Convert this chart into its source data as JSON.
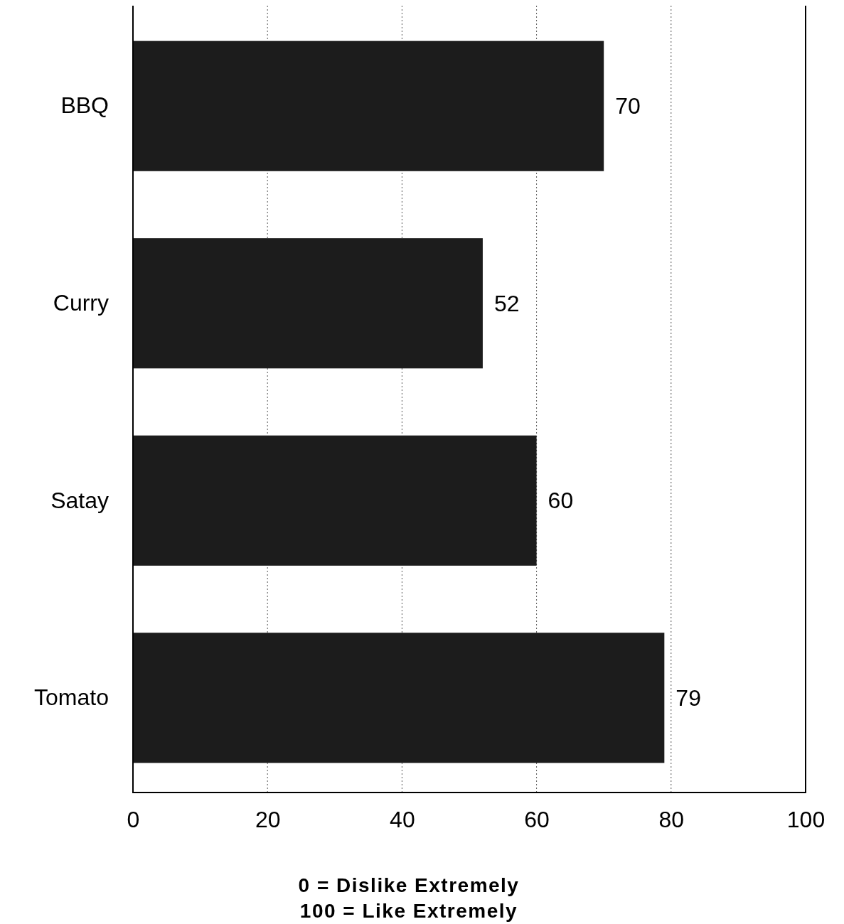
{
  "chart_data": {
    "type": "bar",
    "orientation": "horizontal",
    "categories": [
      "BBQ",
      "Curry",
      "Satay",
      "Tomato"
    ],
    "values": [
      70,
      52,
      60,
      79
    ],
    "color": "#1c1c1c",
    "xlim": [
      0,
      100
    ],
    "xticks": [
      0,
      20,
      40,
      60,
      80,
      100
    ],
    "xlabel": "0 = Dislike Extremely\n100 = Like Extremely",
    "grid": "x",
    "data_labels": true
  }
}
